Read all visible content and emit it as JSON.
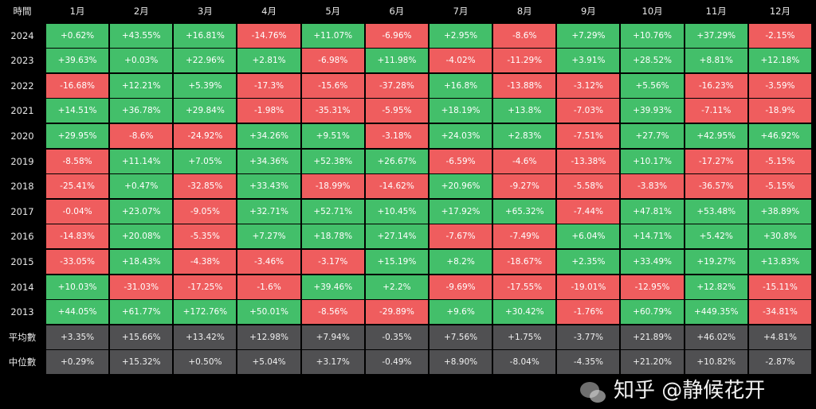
{
  "chart_data": {
    "type": "heatmap",
    "corner_label": "時間",
    "columns": [
      "1月",
      "2月",
      "3月",
      "4月",
      "5月",
      "6月",
      "7月",
      "8月",
      "9月",
      "10月",
      "11月",
      "12月"
    ],
    "rows": [
      {
        "label": "2024",
        "values": [
          "+0.62%",
          "+43.55%",
          "+16.81%",
          "-14.76%",
          "+11.07%",
          "-6.96%",
          "+2.95%",
          "-8.6%",
          "+7.29%",
          "+10.76%",
          "+37.29%",
          "-2.15%"
        ]
      },
      {
        "label": "2023",
        "values": [
          "+39.63%",
          "+0.03%",
          "+22.96%",
          "+2.81%",
          "-6.98%",
          "+11.98%",
          "-4.02%",
          "-11.29%",
          "+3.91%",
          "+28.52%",
          "+8.81%",
          "+12.18%"
        ]
      },
      {
        "label": "2022",
        "values": [
          "-16.68%",
          "+12.21%",
          "+5.39%",
          "-17.3%",
          "-15.6%",
          "-37.28%",
          "+16.8%",
          "-13.88%",
          "-3.12%",
          "+5.56%",
          "-16.23%",
          "-3.59%"
        ]
      },
      {
        "label": "2021",
        "values": [
          "+14.51%",
          "+36.78%",
          "+29.84%",
          "-1.98%",
          "-35.31%",
          "-5.95%",
          "+18.19%",
          "+13.8%",
          "-7.03%",
          "+39.93%",
          "-7.11%",
          "-18.9%"
        ]
      },
      {
        "label": "2020",
        "values": [
          "+29.95%",
          "-8.6%",
          "-24.92%",
          "+34.26%",
          "+9.51%",
          "-3.18%",
          "+24.03%",
          "+2.83%",
          "-7.51%",
          "+27.7%",
          "+42.95%",
          "+46.92%"
        ]
      },
      {
        "label": "2019",
        "values": [
          "-8.58%",
          "+11.14%",
          "+7.05%",
          "+34.36%",
          "+52.38%",
          "+26.67%",
          "-6.59%",
          "-4.6%",
          "-13.38%",
          "+10.17%",
          "-17.27%",
          "-5.15%"
        ]
      },
      {
        "label": "2018",
        "values": [
          "-25.41%",
          "+0.47%",
          "-32.85%",
          "+33.43%",
          "-18.99%",
          "-14.62%",
          "+20.96%",
          "-9.27%",
          "-5.58%",
          "-3.83%",
          "-36.57%",
          "-5.15%"
        ]
      },
      {
        "label": "2017",
        "values": [
          "-0.04%",
          "+23.07%",
          "-9.05%",
          "+32.71%",
          "+52.71%",
          "+10.45%",
          "+17.92%",
          "+65.32%",
          "-7.44%",
          "+47.81%",
          "+53.48%",
          "+38.89%"
        ]
      },
      {
        "label": "2016",
        "values": [
          "-14.83%",
          "+20.08%",
          "-5.35%",
          "+7.27%",
          "+18.78%",
          "+27.14%",
          "-7.67%",
          "-7.49%",
          "+6.04%",
          "+14.71%",
          "+5.42%",
          "+30.8%"
        ]
      },
      {
        "label": "2015",
        "values": [
          "-33.05%",
          "+18.43%",
          "-4.38%",
          "-3.46%",
          "-3.17%",
          "+15.19%",
          "+8.2%",
          "-18.67%",
          "+2.35%",
          "+33.49%",
          "+19.27%",
          "+13.83%"
        ]
      },
      {
        "label": "2014",
        "values": [
          "+10.03%",
          "-31.03%",
          "-17.25%",
          "-1.6%",
          "+39.46%",
          "+2.2%",
          "-9.69%",
          "-17.55%",
          "-19.01%",
          "-12.95%",
          "+12.82%",
          "-15.11%"
        ]
      },
      {
        "label": "2013",
        "values": [
          "+44.05%",
          "+61.77%",
          "+172.76%",
          "+50.01%",
          "-8.56%",
          "-29.89%",
          "+9.6%",
          "+30.42%",
          "-1.76%",
          "+60.79%",
          "+449.35%",
          "-34.81%"
        ]
      }
    ],
    "summary_rows": [
      {
        "label": "平均數",
        "values": [
          "+3.35%",
          "+15.66%",
          "+13.42%",
          "+12.98%",
          "+7.94%",
          "-0.35%",
          "+7.56%",
          "+1.75%",
          "-3.77%",
          "+21.89%",
          "+46.02%",
          "+4.81%"
        ]
      },
      {
        "label": "中位數",
        "values": [
          "+0.29%",
          "+15.32%",
          "+0.50%",
          "+5.04%",
          "+3.17%",
          "-0.49%",
          "+8.90%",
          "-8.04%",
          "-4.35%",
          "+21.20%",
          "+10.82%",
          "-2.87%"
        ]
      }
    ],
    "colors": {
      "positive": "#43bf6a",
      "negative": "#ef5d5e",
      "summary": "#505052",
      "background": "#000000"
    }
  },
  "watermark": "知乎 @静候花开"
}
